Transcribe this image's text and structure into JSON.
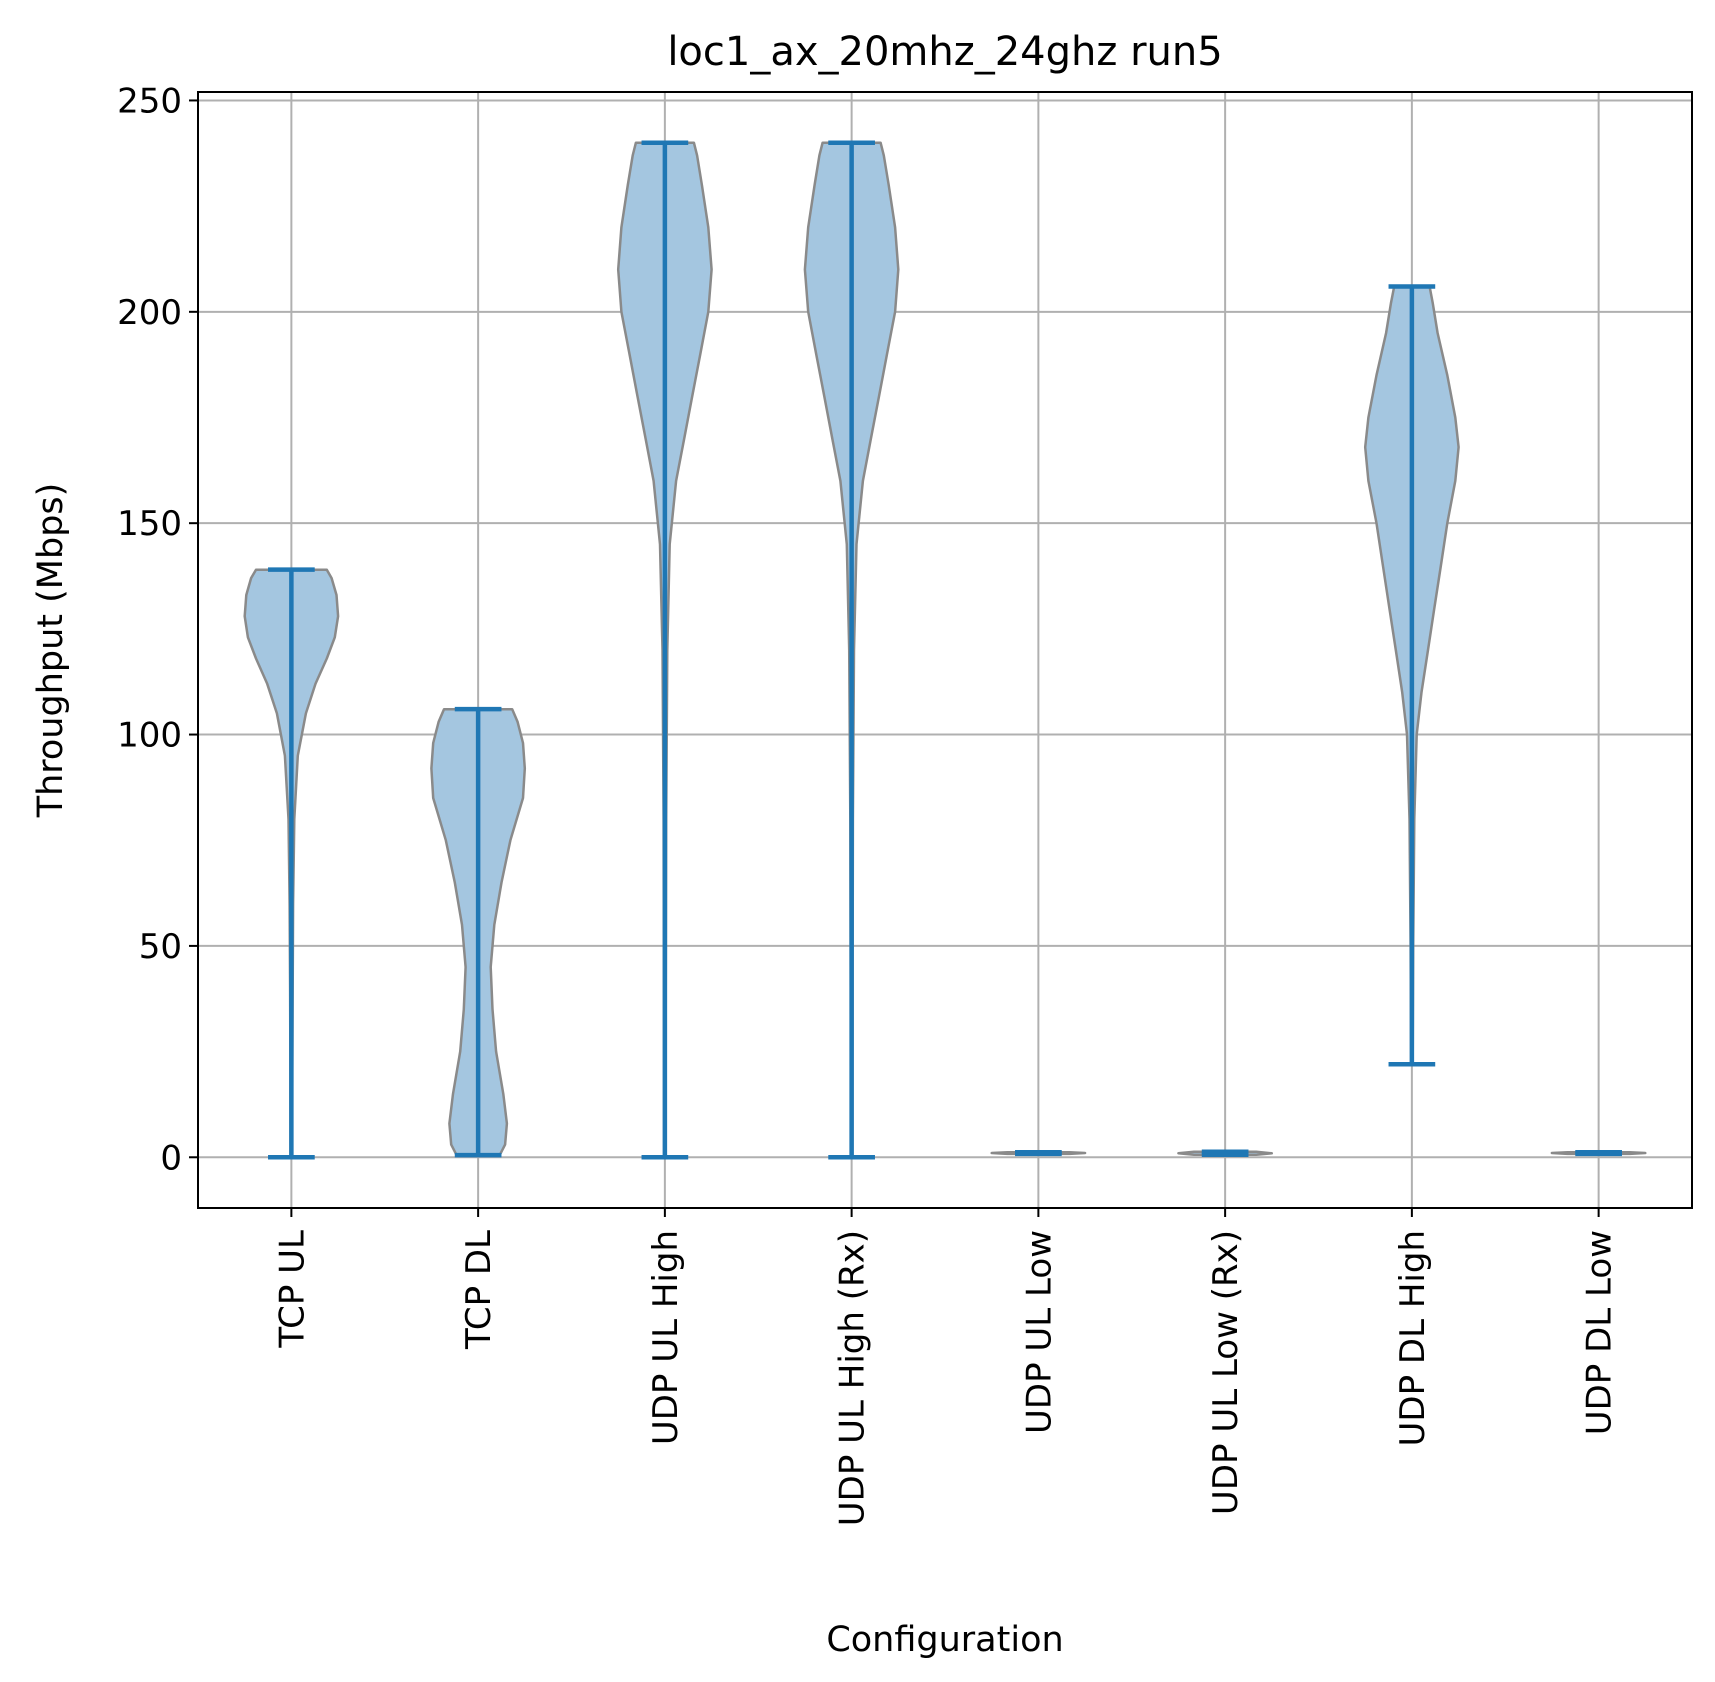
{
  "chart_data": {
    "type": "violin",
    "title": "loc1_ax_20mhz_24ghz run5",
    "xlabel": "Configuration",
    "ylabel": "Throughput (Mbps)",
    "ylim": [
      -12,
      252
    ],
    "yticks": [
      0,
      50,
      100,
      150,
      200,
      250
    ],
    "grid": true,
    "colors": {
      "body_fill": "#a4c6e0",
      "body_edge": "#8a8a8a",
      "whisker": "#1f77b4",
      "grid": "#b0b0b0"
    },
    "categories": [
      "TCP  UL",
      "TCP DL",
      "UDP UL High",
      "UDP UL High (Rx)",
      "UDP UL Low",
      "UDP UL Low (Rx)",
      "UDP DL High",
      "UDP DL Low"
    ],
    "series": [
      {
        "category": "TCP  UL",
        "min": 0,
        "max": 139,
        "density": [
          [
            0,
            0.5
          ],
          [
            20,
            0.6
          ],
          [
            40,
            0.8
          ],
          [
            60,
            1.1
          ],
          [
            80,
            1.8
          ],
          [
            95,
            4
          ],
          [
            105,
            9
          ],
          [
            112,
            15
          ],
          [
            118,
            22
          ],
          [
            123,
            27
          ],
          [
            128,
            29
          ],
          [
            133,
            28
          ],
          [
            137,
            25
          ],
          [
            139,
            22
          ]
        ]
      },
      {
        "category": "TCP DL",
        "min": 0.5,
        "max": 106,
        "density": [
          [
            0.5,
            12
          ],
          [
            3,
            15
          ],
          [
            8,
            16
          ],
          [
            15,
            14
          ],
          [
            25,
            10
          ],
          [
            35,
            8
          ],
          [
            45,
            7
          ],
          [
            55,
            9
          ],
          [
            65,
            13
          ],
          [
            75,
            18
          ],
          [
            85,
            25
          ],
          [
            92,
            26
          ],
          [
            98,
            25
          ],
          [
            103,
            22
          ],
          [
            106,
            19
          ]
        ]
      },
      {
        "category": "UDP UL High",
        "min": 0,
        "max": 240,
        "density": [
          [
            0,
            0.5
          ],
          [
            40,
            0.6
          ],
          [
            80,
            0.8
          ],
          [
            120,
            1.5
          ],
          [
            145,
            3
          ],
          [
            160,
            7
          ],
          [
            170,
            12
          ],
          [
            180,
            17
          ],
          [
            190,
            22
          ],
          [
            200,
            27
          ],
          [
            210,
            29
          ],
          [
            220,
            27
          ],
          [
            230,
            23
          ],
          [
            237,
            20
          ],
          [
            240,
            18
          ]
        ]
      },
      {
        "category": "UDP UL High (Rx)",
        "min": 0,
        "max": 240,
        "density": [
          [
            0,
            0.5
          ],
          [
            40,
            0.6
          ],
          [
            80,
            0.8
          ],
          [
            120,
            1.5
          ],
          [
            145,
            3
          ],
          [
            160,
            7
          ],
          [
            170,
            12
          ],
          [
            180,
            17
          ],
          [
            190,
            22
          ],
          [
            200,
            27
          ],
          [
            210,
            29
          ],
          [
            220,
            27
          ],
          [
            230,
            23
          ],
          [
            237,
            20
          ],
          [
            240,
            18
          ]
        ]
      },
      {
        "category": "UDP UL Low",
        "min": 0.8,
        "max": 1.2,
        "density": [
          [
            0.8,
            30
          ],
          [
            1.0,
            45
          ],
          [
            1.2,
            30
          ]
        ]
      },
      {
        "category": "UDP UL Low (Rx)",
        "min": 0.6,
        "max": 1.3,
        "density": [
          [
            0.6,
            30
          ],
          [
            0.95,
            45
          ],
          [
            1.3,
            30
          ]
        ]
      },
      {
        "category": "UDP DL High",
        "min": 22,
        "max": 206,
        "density": [
          [
            22,
            0.5
          ],
          [
            50,
            0.8
          ],
          [
            80,
            1.5
          ],
          [
            100,
            3
          ],
          [
            110,
            6
          ],
          [
            120,
            10
          ],
          [
            130,
            14
          ],
          [
            140,
            18
          ],
          [
            150,
            22
          ],
          [
            160,
            27
          ],
          [
            168,
            29
          ],
          [
            175,
            27
          ],
          [
            185,
            22
          ],
          [
            195,
            16
          ],
          [
            202,
            13
          ],
          [
            206,
            11
          ]
        ]
      },
      {
        "category": "UDP DL Low",
        "min": 0.8,
        "max": 1.2,
        "density": [
          [
            0.8,
            30
          ],
          [
            1.0,
            45
          ],
          [
            1.2,
            30
          ]
        ]
      }
    ]
  }
}
